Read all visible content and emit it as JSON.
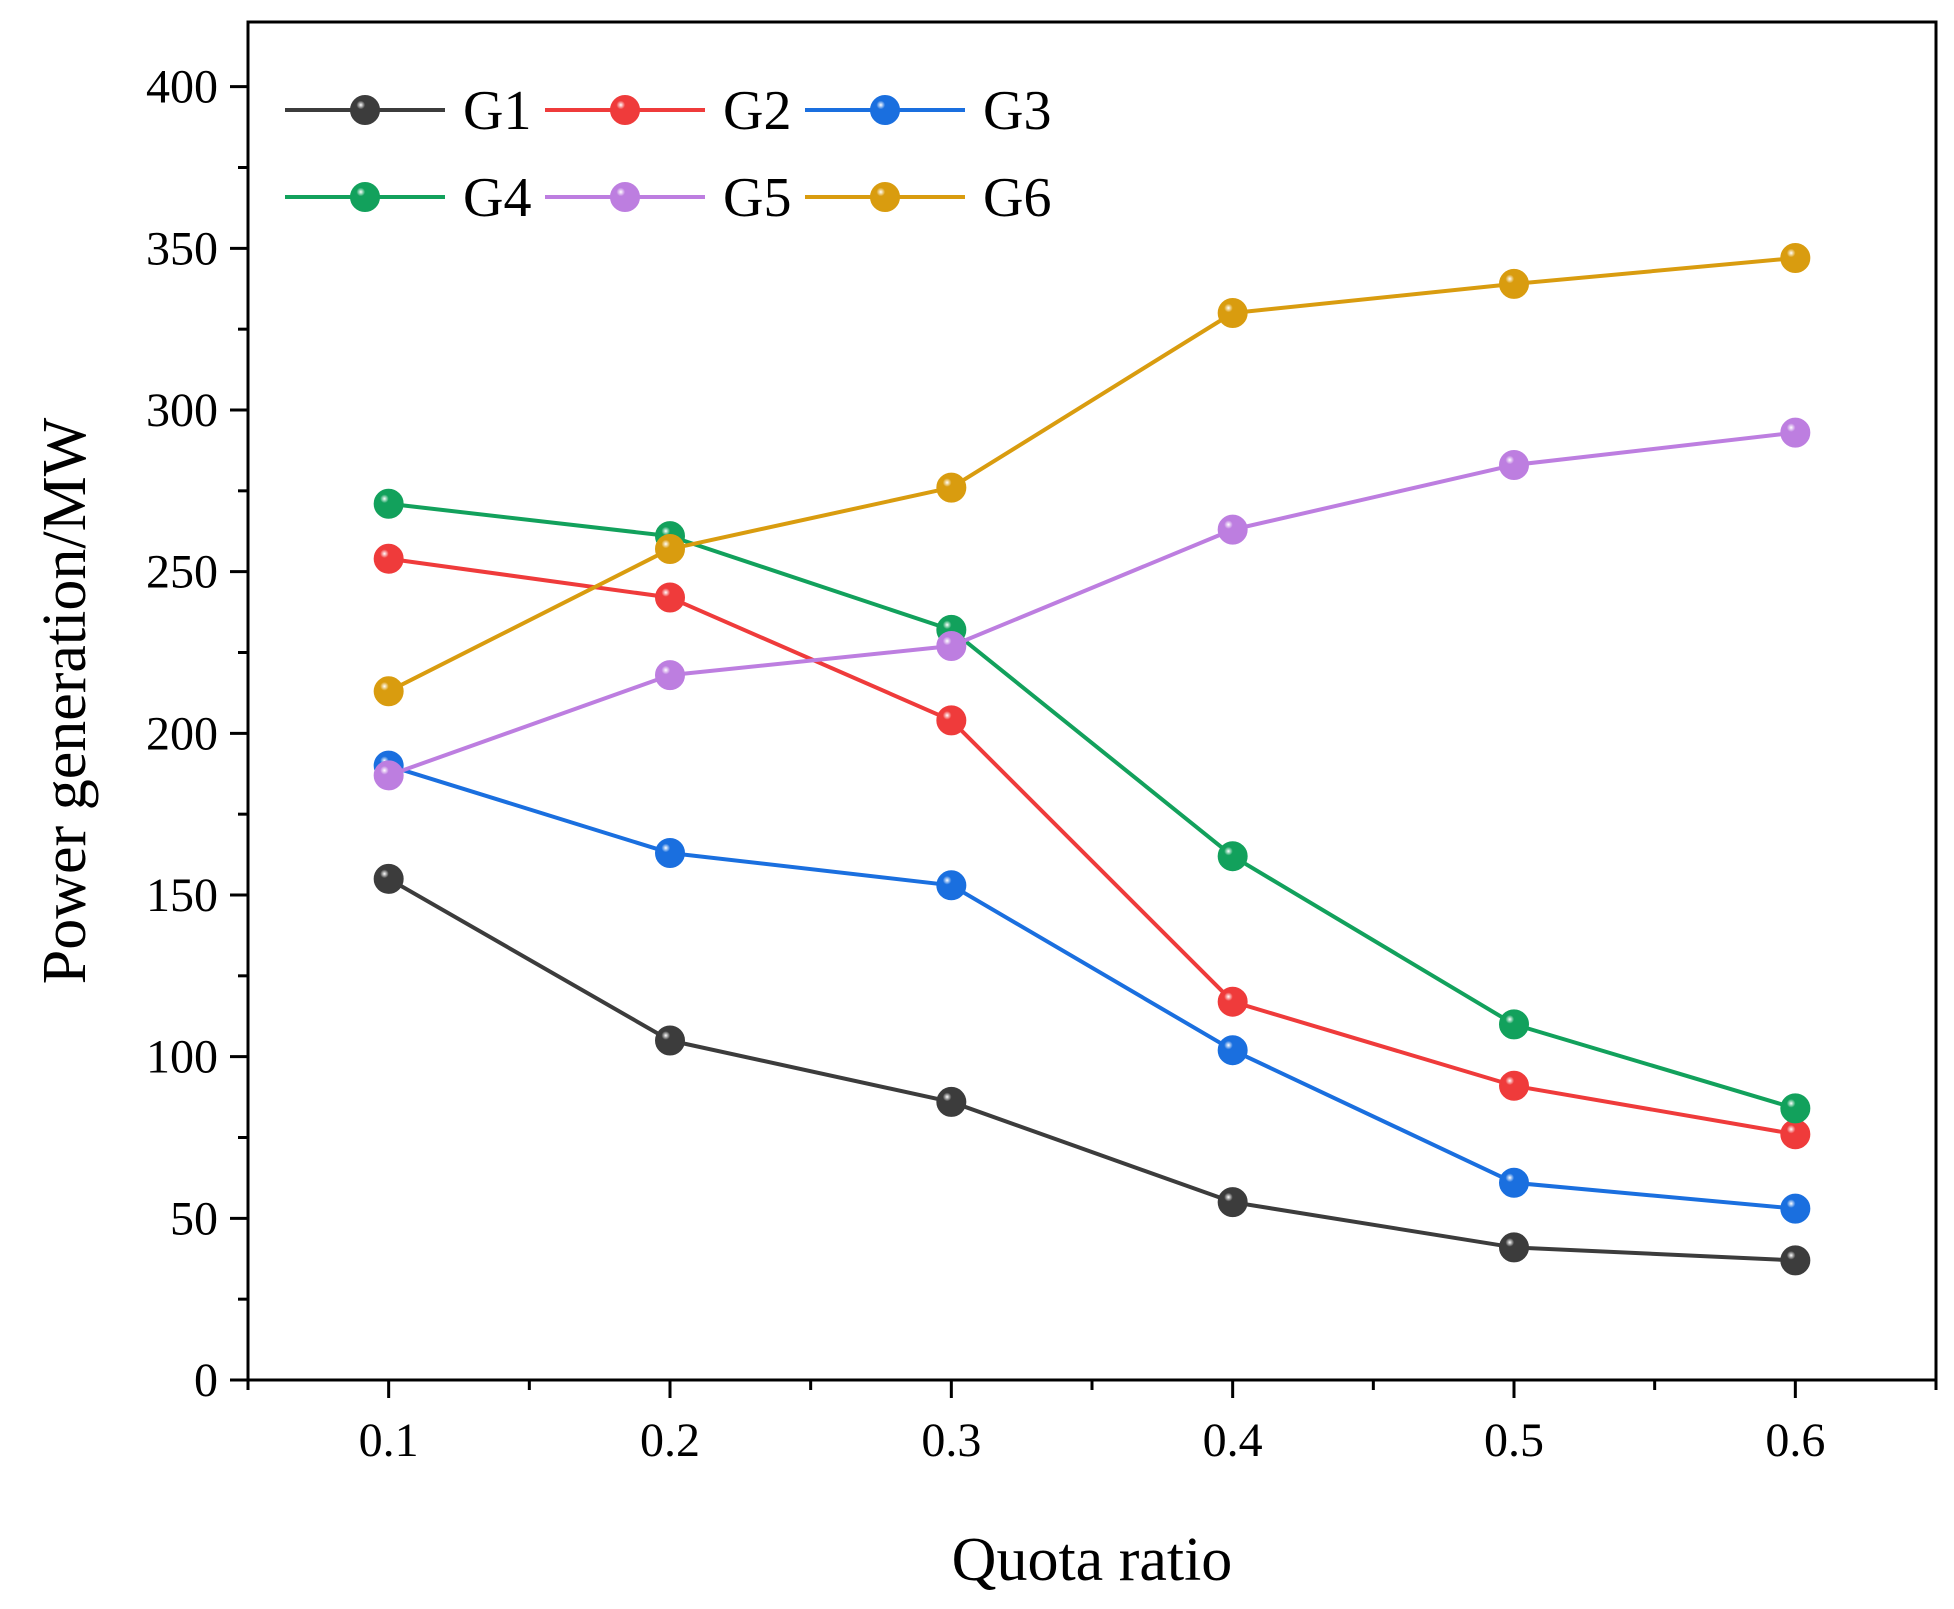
{
  "chart_data": {
    "type": "line",
    "title": "",
    "xlabel": "Quota ratio",
    "ylabel": "Power generation/MW",
    "x": [
      0.1,
      0.2,
      0.3,
      0.4,
      0.5,
      0.6
    ],
    "x_tick_labels": [
      "0.1",
      "0.2",
      "0.3",
      "0.4",
      "0.5",
      "0.6"
    ],
    "xlim": [
      0.05,
      0.65
    ],
    "ylim": [
      0,
      420
    ],
    "y_ticks": [
      0,
      50,
      100,
      150,
      200,
      250,
      300,
      350,
      400
    ],
    "y_tick_labels": [
      "0",
      "50",
      "100",
      "150",
      "200",
      "250",
      "300",
      "350",
      "400"
    ],
    "grid": false,
    "legend_position": "top-left",
    "series": [
      {
        "name": "G1",
        "color": "#3c3c3c",
        "values": [
          155,
          105,
          86,
          55,
          41,
          37
        ]
      },
      {
        "name": "G2",
        "color": "#ef3b3b",
        "values": [
          254,
          242,
          204,
          117,
          91,
          76
        ]
      },
      {
        "name": "G3",
        "color": "#1a6fdf",
        "values": [
          190,
          163,
          153,
          102,
          61,
          53
        ]
      },
      {
        "name": "G4",
        "color": "#12a15c",
        "values": [
          271,
          261,
          232,
          162,
          110,
          84
        ]
      },
      {
        "name": "G5",
        "color": "#bd7ee0",
        "values": [
          187,
          218,
          227,
          263,
          283,
          293
        ]
      },
      {
        "name": "G6",
        "color": "#d99c0f",
        "values": [
          213,
          257,
          276,
          330,
          339,
          347
        ]
      }
    ]
  }
}
